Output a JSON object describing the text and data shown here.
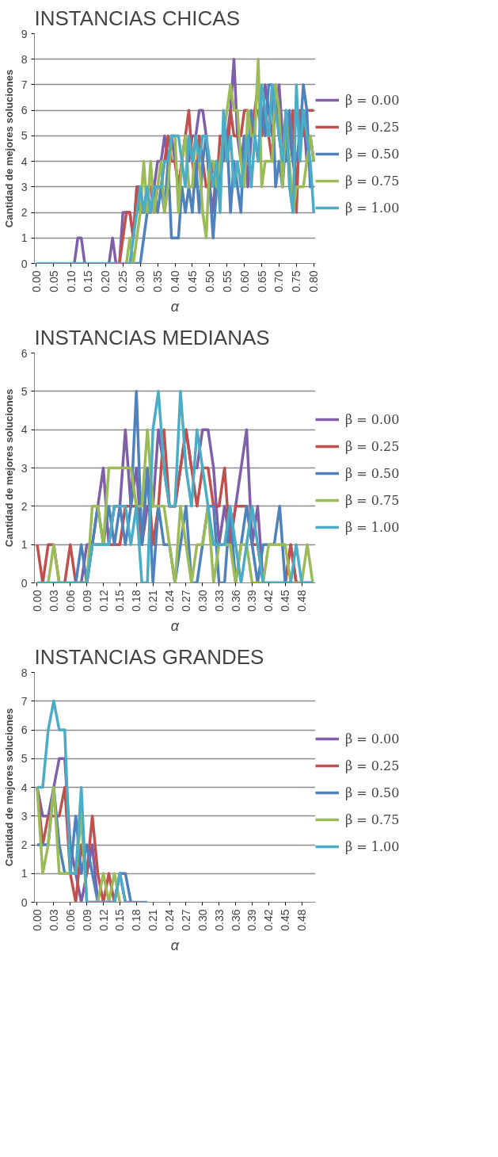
{
  "chart_data": [
    {
      "type": "line",
      "title": "INSTANCIAS CHICAS",
      "xlabel": "α",
      "ylabel": "Cantidad de mejores soluciones",
      "ylim": [
        0,
        9
      ],
      "yticks": [
        0,
        1,
        2,
        3,
        4,
        5,
        6,
        7,
        8,
        9
      ],
      "grid": "y",
      "legend": "right",
      "marker": "none",
      "line_style": "solid",
      "categories": [
        "0.00",
        null,
        null,
        null,
        null,
        "0.05",
        null,
        null,
        null,
        null,
        "0.10",
        null,
        null,
        null,
        null,
        "0.15",
        null,
        null,
        null,
        null,
        "0.20",
        null,
        null,
        null,
        null,
        "0.25",
        null,
        null,
        null,
        null,
        "0.30",
        null,
        null,
        null,
        null,
        "0.35",
        null,
        null,
        null,
        null,
        "0.40",
        null,
        null,
        null,
        null,
        "0.45",
        null,
        null,
        null,
        null,
        "0.50",
        null,
        null,
        null,
        null,
        "0.55",
        null,
        null,
        null,
        null,
        "0.60",
        null,
        null,
        null,
        null,
        "0.65",
        null,
        null,
        null,
        null,
        "0.70",
        null,
        null,
        null,
        null,
        "0.75",
        null,
        null,
        null,
        null,
        "0.80"
      ],
      "series": [
        {
          "name": "β = 0.00",
          "color": "#7f5fa8",
          "values": [
            null,
            null,
            null,
            null,
            null,
            null,
            null,
            null,
            null,
            null,
            null,
            0,
            1,
            1,
            0,
            null,
            null,
            null,
            null,
            null,
            null,
            0,
            1,
            0,
            0,
            2,
            2,
            2,
            1,
            3,
            3,
            2,
            3,
            3,
            3,
            4,
            4,
            5,
            4,
            5,
            4,
            3,
            4,
            5,
            4,
            5,
            5,
            6,
            6,
            5,
            3,
            2,
            4,
            3,
            5,
            5,
            6,
            8,
            5,
            4,
            5,
            3,
            5,
            6,
            6,
            5,
            7,
            6,
            5,
            6,
            7,
            5,
            4,
            5,
            4,
            3,
            5,
            6,
            4,
            5,
            4
          ]
        },
        {
          "name": "β = 0.25",
          "color": "#c0504d",
          "values": [
            null,
            null,
            null,
            null,
            null,
            null,
            null,
            null,
            null,
            null,
            null,
            null,
            null,
            null,
            null,
            null,
            null,
            null,
            null,
            null,
            null,
            null,
            null,
            null,
            0,
            1,
            2,
            2,
            1,
            3,
            2,
            2,
            3,
            3,
            2,
            3,
            3,
            4,
            5,
            4,
            4,
            3,
            4,
            5,
            6,
            4,
            3,
            5,
            4,
            3,
            3,
            4,
            3,
            5,
            5,
            4,
            6,
            5,
            5,
            5,
            6,
            6,
            5,
            6,
            7,
            5,
            6,
            5,
            4,
            7,
            5,
            4,
            6,
            5,
            6,
            2,
            6,
            5,
            6,
            6,
            6
          ]
        },
        {
          "name": "β = 0.50",
          "color": "#4f81bd",
          "values": [
            null,
            null,
            null,
            null,
            null,
            null,
            null,
            null,
            null,
            null,
            null,
            null,
            null,
            null,
            null,
            null,
            null,
            null,
            null,
            null,
            null,
            null,
            null,
            null,
            null,
            null,
            null,
            0,
            0,
            0,
            0,
            1,
            2,
            2,
            3,
            2,
            3,
            2,
            4,
            1,
            1,
            1,
            3,
            2,
            3,
            2,
            4,
            2,
            4,
            5,
            3,
            1,
            3,
            4,
            4,
            5,
            2,
            4,
            3,
            2,
            5,
            4,
            6,
            5,
            4,
            6,
            5,
            7,
            7,
            3,
            4,
            3,
            5,
            6,
            4,
            4,
            5,
            7,
            6,
            3,
            3
          ]
        },
        {
          "name": "β = 0.75",
          "color": "#9bbb59",
          "values": [
            null,
            null,
            null,
            null,
            null,
            null,
            null,
            null,
            null,
            null,
            null,
            null,
            null,
            null,
            null,
            null,
            null,
            null,
            null,
            null,
            null,
            null,
            null,
            null,
            null,
            null,
            0,
            1,
            0,
            1,
            2,
            4,
            2,
            4,
            2,
            3,
            4,
            2,
            3,
            5,
            5,
            2,
            4,
            5,
            3,
            3,
            5,
            4,
            2,
            1,
            4,
            4,
            3,
            4,
            5,
            6,
            7,
            6,
            6,
            4,
            3,
            6,
            5,
            5,
            8,
            3,
            4,
            4,
            4,
            7,
            6,
            3,
            6,
            4,
            2,
            3,
            3,
            3,
            4,
            5,
            4
          ]
        },
        {
          "name": "β = 1.00",
          "color": "#4bacc6",
          "values": [
            0,
            0,
            0,
            0,
            0,
            0,
            0,
            0,
            0,
            0,
            0,
            0,
            0,
            0,
            0,
            0,
            0,
            0,
            0,
            0,
            0,
            0,
            0,
            0,
            0,
            0,
            0,
            0,
            1,
            2,
            3,
            2,
            3,
            2,
            3,
            3,
            3,
            4,
            4,
            5,
            5,
            5,
            4,
            3,
            5,
            4,
            5,
            4,
            5,
            5,
            4,
            3,
            4,
            2,
            6,
            4,
            5,
            3,
            4,
            3,
            4,
            5,
            3,
            5,
            4,
            7,
            6,
            5,
            7,
            6,
            5,
            4,
            6,
            3,
            2,
            7,
            4,
            6,
            5,
            4,
            2
          ]
        }
      ]
    },
    {
      "type": "line",
      "title": "INSTANCIAS MEDIANAS",
      "xlabel": "α",
      "ylabel": "Cantidad de mejores soluciones",
      "ylim": [
        0,
        6
      ],
      "yticks": [
        0,
        1,
        2,
        3,
        4,
        5,
        6
      ],
      "grid": "y",
      "legend": "right",
      "marker": "none",
      "line_style": "solid",
      "categories": [
        "0.00",
        null,
        null,
        "0.03",
        null,
        null,
        "0.06",
        null,
        null,
        "0.09",
        null,
        null,
        "0.12",
        null,
        null,
        "0.15",
        null,
        null,
        "0.18",
        null,
        null,
        "0.21",
        null,
        null,
        "0.24",
        null,
        null,
        "0.27",
        null,
        null,
        "0.30",
        null,
        null,
        "0.33",
        null,
        null,
        "0.36",
        null,
        null,
        "0.39",
        null,
        null,
        "0.42",
        null,
        null,
        "0.45",
        null,
        null,
        "0.48",
        null,
        null
      ],
      "series": [
        {
          "name": "β = 0.00",
          "color": "#7f5fa8",
          "values": [
            null,
            null,
            null,
            null,
            null,
            null,
            null,
            null,
            0,
            1,
            1,
            2,
            3,
            1,
            2,
            2,
            4,
            2,
            3,
            1,
            2,
            2,
            4,
            3,
            2,
            2,
            3,
            4,
            3,
            3,
            4,
            4,
            3,
            1,
            2,
            1,
            2,
            3,
            4,
            1,
            2,
            0,
            0,
            0,
            0,
            0,
            1,
            0,
            0,
            0,
            0
          ]
        },
        {
          "name": "β = 0.25",
          "color": "#c0504d",
          "values": [
            1,
            0,
            1,
            1,
            0,
            0,
            1,
            0,
            0,
            0,
            1,
            1,
            1,
            1,
            1,
            1,
            2,
            2,
            2,
            1,
            3,
            1,
            2,
            4,
            2,
            2,
            3,
            4,
            3,
            2,
            3,
            3,
            2,
            2,
            3,
            1,
            2,
            2,
            2,
            1,
            1,
            0,
            null,
            null,
            null,
            0,
            1,
            0,
            null,
            null,
            null
          ]
        },
        {
          "name": "β = 0.50",
          "color": "#4f81bd",
          "values": [
            null,
            null,
            null,
            null,
            null,
            null,
            null,
            0,
            1,
            0,
            1,
            2,
            1,
            2,
            1,
            2,
            1,
            2,
            5,
            1,
            3,
            0,
            2,
            1,
            1,
            0,
            1,
            2,
            0,
            0,
            1,
            2,
            2,
            0,
            0,
            2,
            0,
            1,
            2,
            1,
            0,
            1,
            1,
            1,
            2,
            0,
            0,
            0,
            0,
            0,
            0
          ]
        },
        {
          "name": "β = 0.75",
          "color": "#9bbb59",
          "values": [
            null,
            null,
            0,
            1,
            0,
            0,
            0,
            0,
            0,
            0,
            2,
            2,
            1,
            3,
            3,
            3,
            3,
            3,
            2,
            2,
            4,
            2,
            2,
            2,
            1,
            0,
            2,
            1,
            0,
            1,
            1,
            2,
            0,
            1,
            1,
            1,
            0,
            1,
            1,
            0,
            0,
            0,
            1,
            1,
            1,
            1,
            0,
            0,
            0,
            1,
            0
          ]
        },
        {
          "name": "β = 1.00",
          "color": "#4bacc6",
          "values": [
            0,
            0,
            0,
            0,
            0,
            0,
            0,
            0,
            0,
            0,
            1,
            1,
            1,
            1,
            2,
            2,
            2,
            1,
            2,
            0,
            0,
            4,
            5,
            3,
            2,
            2,
            5,
            3,
            2,
            4,
            3,
            2,
            1,
            1,
            1,
            2,
            1,
            0,
            1,
            2,
            1,
            0,
            0,
            0,
            0,
            0,
            0,
            1,
            0,
            0,
            0
          ]
        }
      ]
    },
    {
      "type": "line",
      "title": "INSTANCIAS GRANDES",
      "xlabel": "α",
      "ylabel": "Cantidad de mejores soluciones",
      "ylim": [
        0,
        8
      ],
      "yticks": [
        0,
        1,
        2,
        3,
        4,
        5,
        6,
        7,
        8
      ],
      "grid": "y",
      "legend": "right",
      "marker": "none",
      "line_style": "solid",
      "categories": [
        "0.00",
        null,
        null,
        "0.03",
        null,
        null,
        "0.06",
        null,
        null,
        "0.09",
        null,
        null,
        "0.12",
        null,
        null,
        "0.15",
        null,
        null,
        "0.18",
        null,
        null,
        "0.21",
        null,
        null,
        "0.24",
        null,
        null,
        "0.27",
        null,
        null,
        "0.30",
        null,
        null,
        "0.33",
        null,
        null,
        "0.36",
        null,
        null,
        "0.39",
        null,
        null,
        "0.42",
        null,
        null,
        "0.45",
        null,
        null,
        "0.48",
        null,
        null
      ],
      "series": [
        {
          "name": "β = 0.00",
          "color": "#7f5fa8",
          "values": [
            4,
            3,
            3,
            4,
            5,
            5,
            2,
            1,
            0,
            1,
            2,
            0,
            null,
            null,
            null,
            null,
            null,
            null,
            null,
            null,
            null,
            null,
            null,
            null,
            null,
            null,
            null,
            null,
            null,
            null,
            null,
            null,
            null,
            null,
            null,
            null,
            null,
            null,
            null,
            null,
            null,
            null,
            null,
            null,
            null,
            null,
            null,
            null,
            null,
            null,
            null
          ]
        },
        {
          "name": "β = 0.25",
          "color": "#c0504d",
          "values": [
            4,
            2,
            3,
            3,
            3,
            4,
            1,
            0,
            2,
            1,
            3,
            1,
            0,
            1,
            0,
            1,
            0,
            null,
            null,
            null,
            null,
            null,
            null,
            null,
            null,
            null,
            null,
            null,
            null,
            null,
            null,
            null,
            null,
            null,
            null,
            null,
            null,
            null,
            null,
            null,
            null,
            null,
            null,
            null,
            null,
            null,
            null,
            null,
            null,
            null,
            null
          ]
        },
        {
          "name": "β = 0.50",
          "color": "#4f81bd",
          "values": [
            2,
            2,
            2,
            4,
            2,
            1,
            1,
            3,
            1,
            2,
            1,
            0,
            0,
            0,
            0,
            1,
            1,
            0,
            null,
            null,
            null,
            null,
            null,
            null,
            null,
            null,
            null,
            null,
            null,
            null,
            null,
            null,
            null,
            null,
            null,
            null,
            null,
            null,
            null,
            null,
            null,
            null,
            null,
            null,
            null,
            null,
            null,
            null,
            null,
            null,
            null
          ]
        },
        {
          "name": "β = 0.75",
          "color": "#9bbb59",
          "values": [
            4,
            1,
            2,
            4,
            1,
            1,
            1,
            1,
            3,
            0,
            0,
            0,
            1,
            0,
            1,
            0,
            null,
            null,
            null,
            null,
            null,
            null,
            null,
            null,
            null,
            null,
            null,
            null,
            null,
            null,
            null,
            null,
            null,
            null,
            null,
            null,
            null,
            null,
            null,
            null,
            null,
            null,
            null,
            null,
            null,
            null,
            null,
            null,
            null,
            null,
            null
          ]
        },
        {
          "name": "β = 1.00",
          "color": "#4bacc6",
          "values": [
            4,
            4,
            6,
            7,
            6,
            6,
            1,
            1,
            4,
            0,
            0,
            0,
            0,
            0,
            0,
            1,
            0,
            0,
            0,
            0,
            0,
            null,
            null,
            null,
            null,
            null,
            null,
            null,
            null,
            null,
            null,
            null,
            null,
            null,
            null,
            null,
            null,
            null,
            null,
            null,
            null,
            null,
            null,
            null,
            null,
            null,
            null,
            null,
            null,
            null,
            null
          ]
        }
      ]
    }
  ]
}
